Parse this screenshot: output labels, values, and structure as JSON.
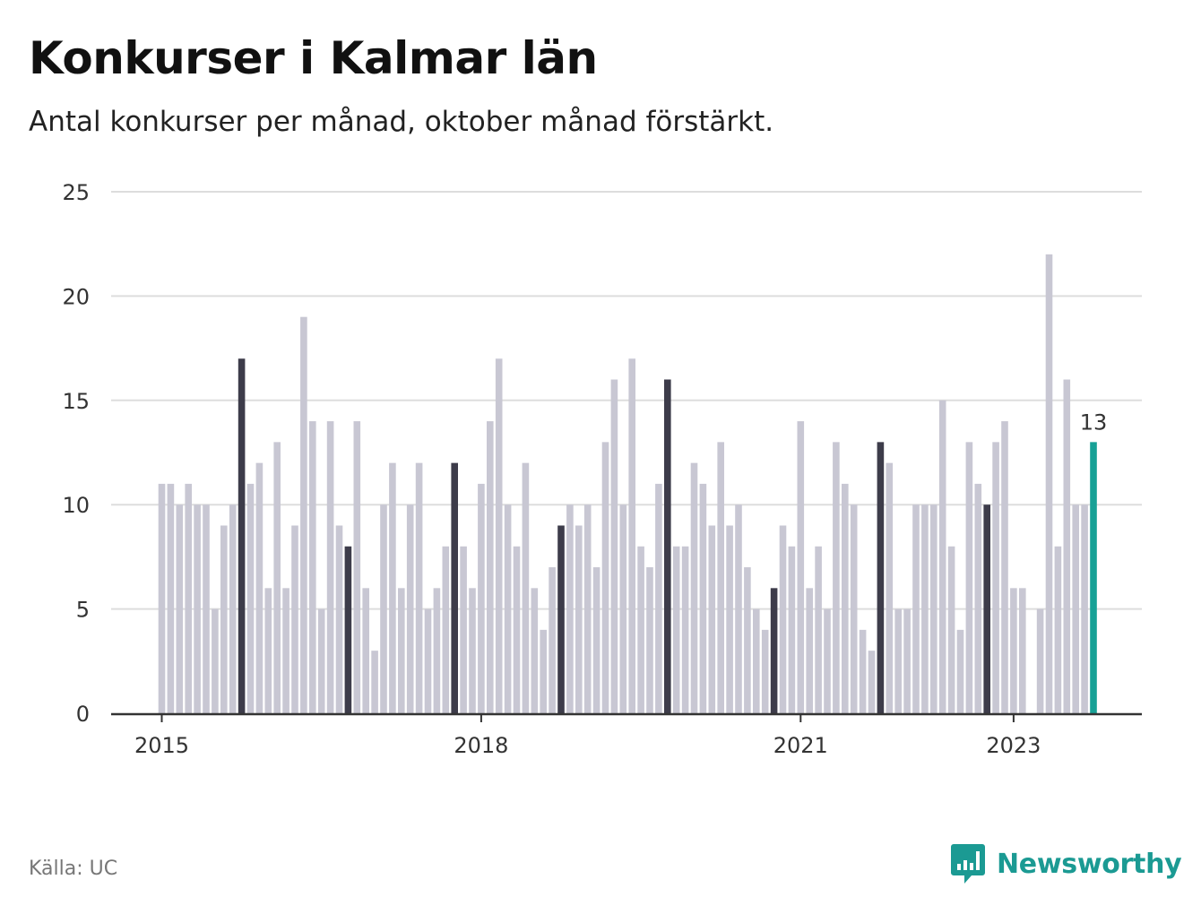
{
  "header": {
    "title": "Konkurser i Kalmar län",
    "subtitle": "Antal konkurser per månad, oktober månad förstärkt."
  },
  "footer": {
    "source": "Källa: UC",
    "brand": "Newsworthy",
    "brand_icon": "newsworthy-logo-icon"
  },
  "colors": {
    "regular": "#c8c7d3",
    "october": "#3d3c4a",
    "current": "#17a196",
    "grid": "#dddddd",
    "axis": "#333333",
    "brand": "#1b9a93"
  },
  "chart_data": {
    "type": "bar",
    "start_month": "2015-01",
    "end_month": "2023-10",
    "values": [
      11,
      11,
      10,
      11,
      10,
      10,
      5,
      9,
      10,
      17,
      11,
      12,
      6,
      13,
      6,
      9,
      19,
      14,
      5,
      14,
      9,
      8,
      14,
      6,
      3,
      10,
      12,
      6,
      10,
      12,
      5,
      6,
      8,
      12,
      8,
      6,
      11,
      14,
      17,
      10,
      8,
      12,
      6,
      4,
      7,
      9,
      10,
      9,
      10,
      7,
      13,
      16,
      10,
      17,
      8,
      7,
      11,
      16,
      8,
      8,
      12,
      11,
      9,
      13,
      9,
      10,
      7,
      5,
      4,
      6,
      9,
      8,
      14,
      6,
      8,
      5,
      13,
      11,
      10,
      4,
      3,
      13,
      12,
      5,
      5,
      10,
      10,
      10,
      15,
      8,
      4,
      13,
      11,
      10,
      13,
      14,
      6,
      6,
      0,
      5,
      22,
      8,
      16,
      10,
      10,
      13
    ],
    "highlight": "oktober",
    "annotation": {
      "value": "13",
      "index": 105
    },
    "x_tick_labels": [
      "2015",
      "2018",
      "2021",
      "2023"
    ],
    "x_tick_indices": [
      0,
      36,
      72,
      96
    ],
    "y_ticks": [
      0,
      5,
      10,
      15,
      20,
      25
    ],
    "ylim": [
      0,
      25
    ],
    "grid": true,
    "xlabel": "",
    "ylabel": ""
  }
}
